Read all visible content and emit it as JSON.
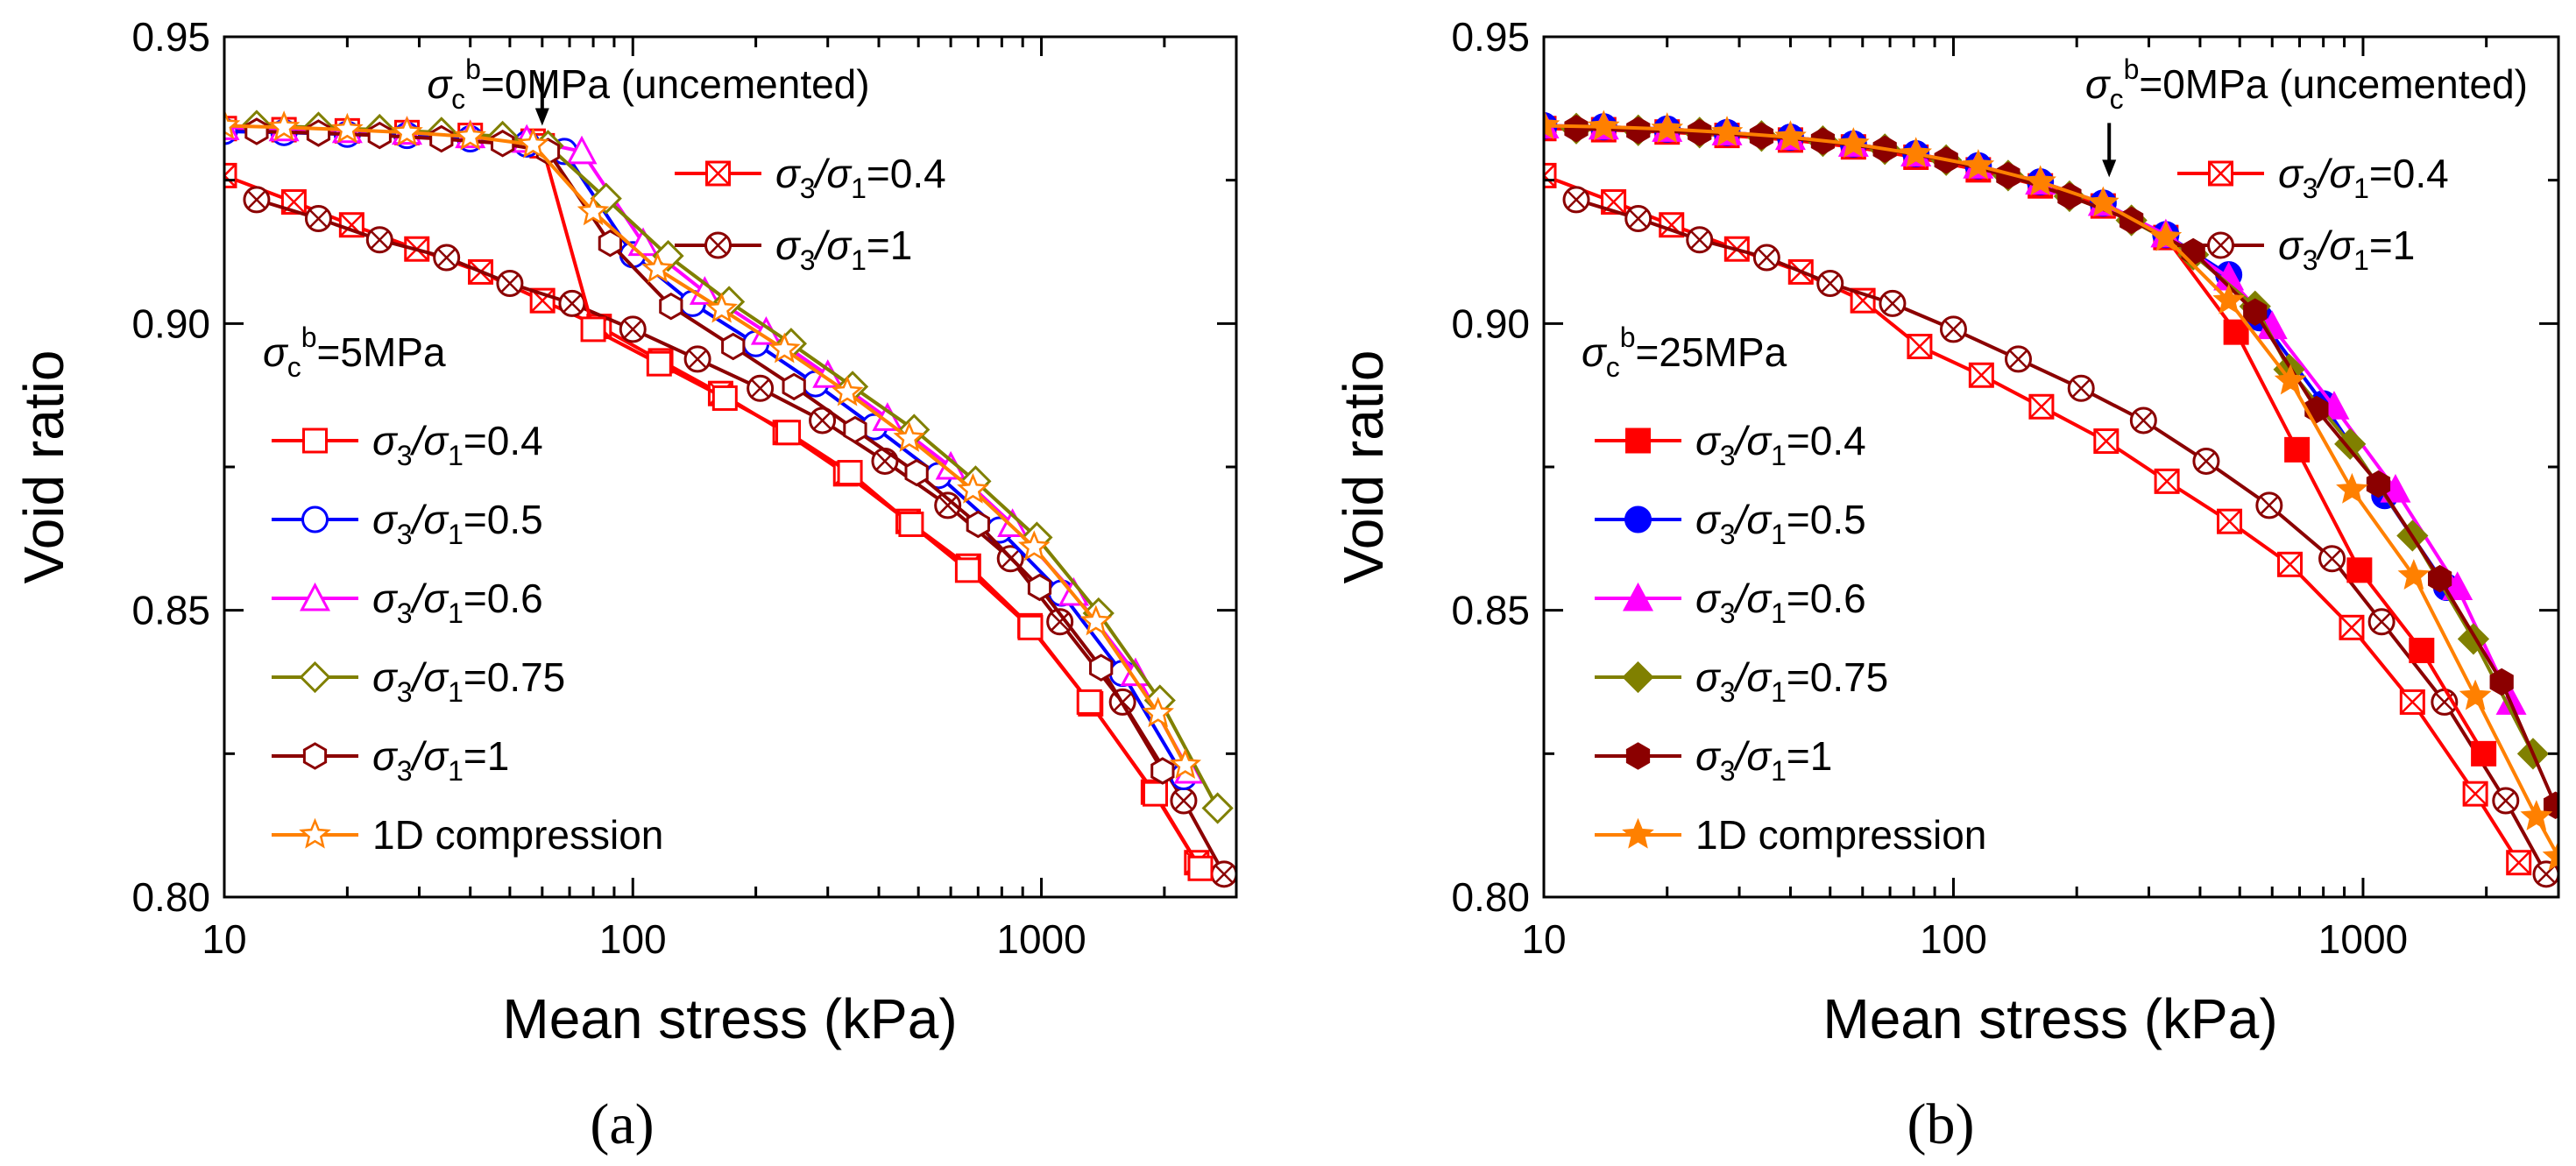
{
  "chart_data": [
    {
      "type": "line",
      "panel_label": "(a)",
      "xlabel": "Mean stress (kPa)",
      "ylabel": "Void ratio",
      "xscale": "log",
      "xlim": [
        10,
        3000
      ],
      "ylim": [
        0.8,
        0.95
      ],
      "xticks": [
        "10",
        "100",
        "1000"
      ],
      "yticks": [
        "0.80",
        "0.85",
        "0.90",
        "0.95"
      ],
      "arrow_at": [
        60,
        0.9345
      ],
      "group_titles": {
        "uncemented": {
          "base": "σ",
          "sub": "c",
          "sup": "b",
          "rest": "=0MPa (uncemented)"
        },
        "cemented": {
          "base": "σ",
          "sub": "c",
          "sup": "b",
          "rest": "=5MPa"
        }
      },
      "series": [
        {
          "name": "σ3/σ1=0.4",
          "group": "uncemented",
          "color": "#ff0000",
          "marker": "square-x",
          "x": [
            10,
            14.8,
            20.5,
            29.6,
            42.4,
            60.1,
            82.7,
            117,
            164,
            236,
            332,
            472,
            663,
            938,
            1320,
            1880,
            2400
          ],
          "y": [
            0.9258,
            0.9212,
            0.9172,
            0.913,
            0.909,
            0.904,
            0.8995,
            0.8935,
            0.8878,
            0.881,
            0.8738,
            0.8655,
            0.8577,
            0.8473,
            0.8337,
            0.8183,
            0.806
          ]
        },
        {
          "name": "σ3/σ1=1",
          "group": "uncemented",
          "color": "#8b0000",
          "marker": "circle-x",
          "x": [
            12,
            17,
            24,
            35,
            50,
            71,
            100,
            144,
            205,
            291,
            414,
            590,
            840,
            1110,
            1580,
            2230,
            2800
          ],
          "y": [
            0.9216,
            0.9183,
            0.9146,
            0.9115,
            0.907,
            0.9035,
            0.899,
            0.8938,
            0.8887,
            0.8831,
            0.876,
            0.8683,
            0.859,
            0.848,
            0.834,
            0.8168,
            0.804
          ]
        },
        {
          "name": "σ3/σ1=0.4",
          "group": "cemented",
          "color": "#ff0000",
          "marker": "square-open",
          "x": [
            10,
            14,
            20,
            28,
            40,
            57,
            60,
            80,
            116,
            168,
            240,
            340,
            480,
            660,
            940,
            1310,
            1900,
            2450
          ],
          "y": [
            0.934,
            0.9338,
            0.9336,
            0.9333,
            0.9328,
            0.9318,
            0.931,
            0.899,
            0.893,
            0.887,
            0.881,
            0.874,
            0.865,
            0.857,
            0.847,
            0.834,
            0.818,
            0.805
          ]
        },
        {
          "name": "σ3/σ1=0.5",
          "group": "cemented",
          "color": "#0000ff",
          "marker": "circle-open",
          "x": [
            10,
            14,
            20,
            28,
            40,
            55,
            68,
            100,
            140,
            200,
            280,
            390,
            560,
            790,
            1120,
            1580,
            2230
          ],
          "y": [
            0.9335,
            0.9333,
            0.933,
            0.9328,
            0.9322,
            0.9313,
            0.93,
            0.912,
            0.9035,
            0.8965,
            0.8895,
            0.882,
            0.8735,
            0.864,
            0.853,
            0.839,
            0.821
          ]
        },
        {
          "name": "σ3/σ1=0.6",
          "group": "cemented",
          "color": "#ff00ff",
          "marker": "triangle-open",
          "x": [
            10,
            14,
            20,
            28,
            40,
            55,
            75,
            106,
            150,
            212,
            300,
            420,
            600,
            850,
            1200,
            1700,
            2300
          ],
          "y": [
            0.9342,
            0.934,
            0.9337,
            0.9334,
            0.9328,
            0.932,
            0.93,
            0.914,
            0.9055,
            0.8985,
            0.891,
            0.8835,
            0.875,
            0.865,
            0.853,
            0.839,
            0.822
          ]
        },
        {
          "name": "σ3/σ1=0.75",
          "group": "cemented",
          "color": "#808000",
          "marker": "diamond-open",
          "x": [
            12,
            17,
            24,
            34,
            48,
            62,
            86,
            122,
            172,
            244,
            345,
            488,
            690,
            975,
            1380,
            1950,
            2700
          ],
          "y": [
            0.9345,
            0.9342,
            0.9338,
            0.9333,
            0.9326,
            0.931,
            0.9218,
            0.9118,
            0.9038,
            0.8965,
            0.889,
            0.8815,
            0.8725,
            0.8627,
            0.8495,
            0.8343,
            0.8155
          ]
        },
        {
          "name": "σ3/σ1=1",
          "group": "cemented",
          "color": "#8b0000",
          "marker": "hexagon-open",
          "x": [
            12,
            17,
            24,
            34,
            48,
            62,
            88,
            124,
            176,
            248,
            350,
            495,
            700,
            990,
            1400,
            1980
          ],
          "y": [
            0.9335,
            0.9332,
            0.9328,
            0.9322,
            0.9314,
            0.93,
            0.914,
            0.903,
            0.896,
            0.889,
            0.8815,
            0.874,
            0.865,
            0.854,
            0.84,
            0.822
          ]
        },
        {
          "name": "1D compression",
          "group": "cemented",
          "color": "#ff8000",
          "marker": "star-open",
          "x": [
            10,
            14,
            20,
            28,
            40,
            57,
            80,
            115,
            165,
            235,
            335,
            475,
            680,
            960,
            1360,
            1930,
            2250
          ],
          "y": [
            0.9345,
            0.9342,
            0.9338,
            0.9333,
            0.9326,
            0.9312,
            0.9195,
            0.9095,
            0.9025,
            0.8955,
            0.888,
            0.88,
            0.871,
            0.861,
            0.848,
            0.832,
            0.823
          ]
        }
      ]
    },
    {
      "type": "line",
      "panel_label": "(b)",
      "xlabel": "Mean stress (kPa)",
      "ylabel": "Void ratio",
      "xscale": "log",
      "xlim": [
        10,
        3000
      ],
      "ylim": [
        0.8,
        0.95
      ],
      "xticks": [
        "10",
        "100",
        "1000"
      ],
      "yticks": [
        "0.80",
        "0.85",
        "0.90",
        "0.95"
      ],
      "arrow_at": [
        240,
        0.9255
      ],
      "group_titles": {
        "uncemented": {
          "base": "σ",
          "sub": "c",
          "sup": "b",
          "rest": "=0MPa (uncemented)"
        },
        "cemented": {
          "base": "σ",
          "sub": "c",
          "sup": "b",
          "rest": "=25MPa"
        }
      },
      "series": [
        {
          "name": "σ3/σ1=0.4",
          "group": "uncemented",
          "color": "#ff0000",
          "marker": "square-x",
          "x": [
            10,
            14.8,
            20.5,
            29.6,
            42.4,
            60.1,
            82.7,
            117,
            164,
            236,
            332,
            472,
            663,
            938,
            1320,
            1880,
            2400
          ],
          "y": [
            0.9258,
            0.9212,
            0.9172,
            0.913,
            0.909,
            0.904,
            0.896,
            0.891,
            0.8855,
            0.8795,
            0.8725,
            0.8655,
            0.858,
            0.847,
            0.834,
            0.818,
            0.806
          ]
        },
        {
          "name": "σ3/σ1=1",
          "group": "uncemented",
          "color": "#8b0000",
          "marker": "circle-x",
          "x": [
            12,
            17,
            24,
            35,
            50,
            71,
            100,
            144,
            205,
            291,
            414,
            590,
            840,
            1110,
            1580,
            2230,
            2800
          ],
          "y": [
            0.9216,
            0.9183,
            0.9146,
            0.9115,
            0.907,
            0.9035,
            0.899,
            0.8938,
            0.8887,
            0.8831,
            0.876,
            0.8683,
            0.859,
            0.848,
            0.834,
            0.8168,
            0.804
          ]
        },
        {
          "name": "σ3/σ1=0.4",
          "group": "cemented",
          "color": "#ff0000",
          "marker": "square-filled",
          "x": [
            10,
            14,
            20,
            28,
            40,
            57,
            81,
            115,
            163,
            232,
            330,
            490,
            690,
            980,
            1390,
            1970
          ],
          "y": [
            0.934,
            0.9338,
            0.9334,
            0.9328,
            0.932,
            0.9308,
            0.929,
            0.9268,
            0.924,
            0.9205,
            0.915,
            0.8985,
            0.878,
            0.857,
            0.843,
            0.825
          ]
        },
        {
          "name": "σ3/σ1=0.5",
          "group": "cemented",
          "color": "#0000ff",
          "marker": "circle-filled",
          "x": [
            10,
            14,
            20,
            28,
            40,
            57,
            81,
            115,
            163,
            232,
            330,
            470,
            560,
            800,
            1130,
            1600
          ],
          "y": [
            0.9345,
            0.9343,
            0.9339,
            0.9333,
            0.9325,
            0.9313,
            0.9296,
            0.9275,
            0.9247,
            0.921,
            0.9155,
            0.9085,
            0.901,
            0.886,
            0.87,
            0.854
          ]
        },
        {
          "name": "σ3/σ1=0.6",
          "group": "cemented",
          "color": "#ff00ff",
          "marker": "triangle-filled",
          "x": [
            10,
            14,
            20,
            28,
            40,
            57,
            81,
            115,
            163,
            232,
            330,
            470,
            600,
            850,
            1200,
            1700,
            2300
          ],
          "y": [
            0.9345,
            0.9343,
            0.9339,
            0.9333,
            0.9325,
            0.9313,
            0.9296,
            0.9275,
            0.9247,
            0.921,
            0.9155,
            0.908,
            0.8995,
            0.8855,
            0.871,
            0.854,
            0.834
          ]
        },
        {
          "name": "σ3/σ1=0.75",
          "group": "cemented",
          "color": "#808000",
          "marker": "diamond-filled",
          "x": [
            12,
            17,
            24,
            34,
            48,
            68,
            96,
            136,
            192,
            272,
            385,
            545,
            660,
            930,
            1320,
            1860,
            2600
          ],
          "y": [
            0.934,
            0.9337,
            0.9333,
            0.9327,
            0.9318,
            0.9304,
            0.9285,
            0.9258,
            0.9222,
            0.918,
            0.912,
            0.903,
            0.892,
            0.879,
            0.863,
            0.845,
            0.825
          ]
        },
        {
          "name": "σ3/σ1=1",
          "group": "cemented",
          "color": "#8b0000",
          "marker": "hexagon-filled",
          "x": [
            12,
            17,
            24,
            34,
            48,
            68,
            96,
            136,
            192,
            272,
            385,
            545,
            770,
            1090,
            1540,
            2180,
            2950
          ],
          "y": [
            0.934,
            0.9337,
            0.9333,
            0.9327,
            0.9318,
            0.9304,
            0.9285,
            0.9258,
            0.9222,
            0.918,
            0.9125,
            0.902,
            0.885,
            0.872,
            0.8555,
            0.8375,
            0.816
          ]
        },
        {
          "name": "1D compression",
          "group": "cemented",
          "color": "#ff8000",
          "marker": "star-filled",
          "x": [
            10,
            14,
            20,
            28,
            40,
            57,
            81,
            115,
            163,
            232,
            330,
            470,
            665,
            940,
            1330,
            1880,
            2650,
            3000
          ],
          "y": [
            0.9345,
            0.9343,
            0.9339,
            0.9333,
            0.9325,
            0.9313,
            0.9296,
            0.9275,
            0.9247,
            0.921,
            0.915,
            0.904,
            0.89,
            0.871,
            0.856,
            0.835,
            0.814,
            0.807
          ]
        }
      ]
    }
  ]
}
